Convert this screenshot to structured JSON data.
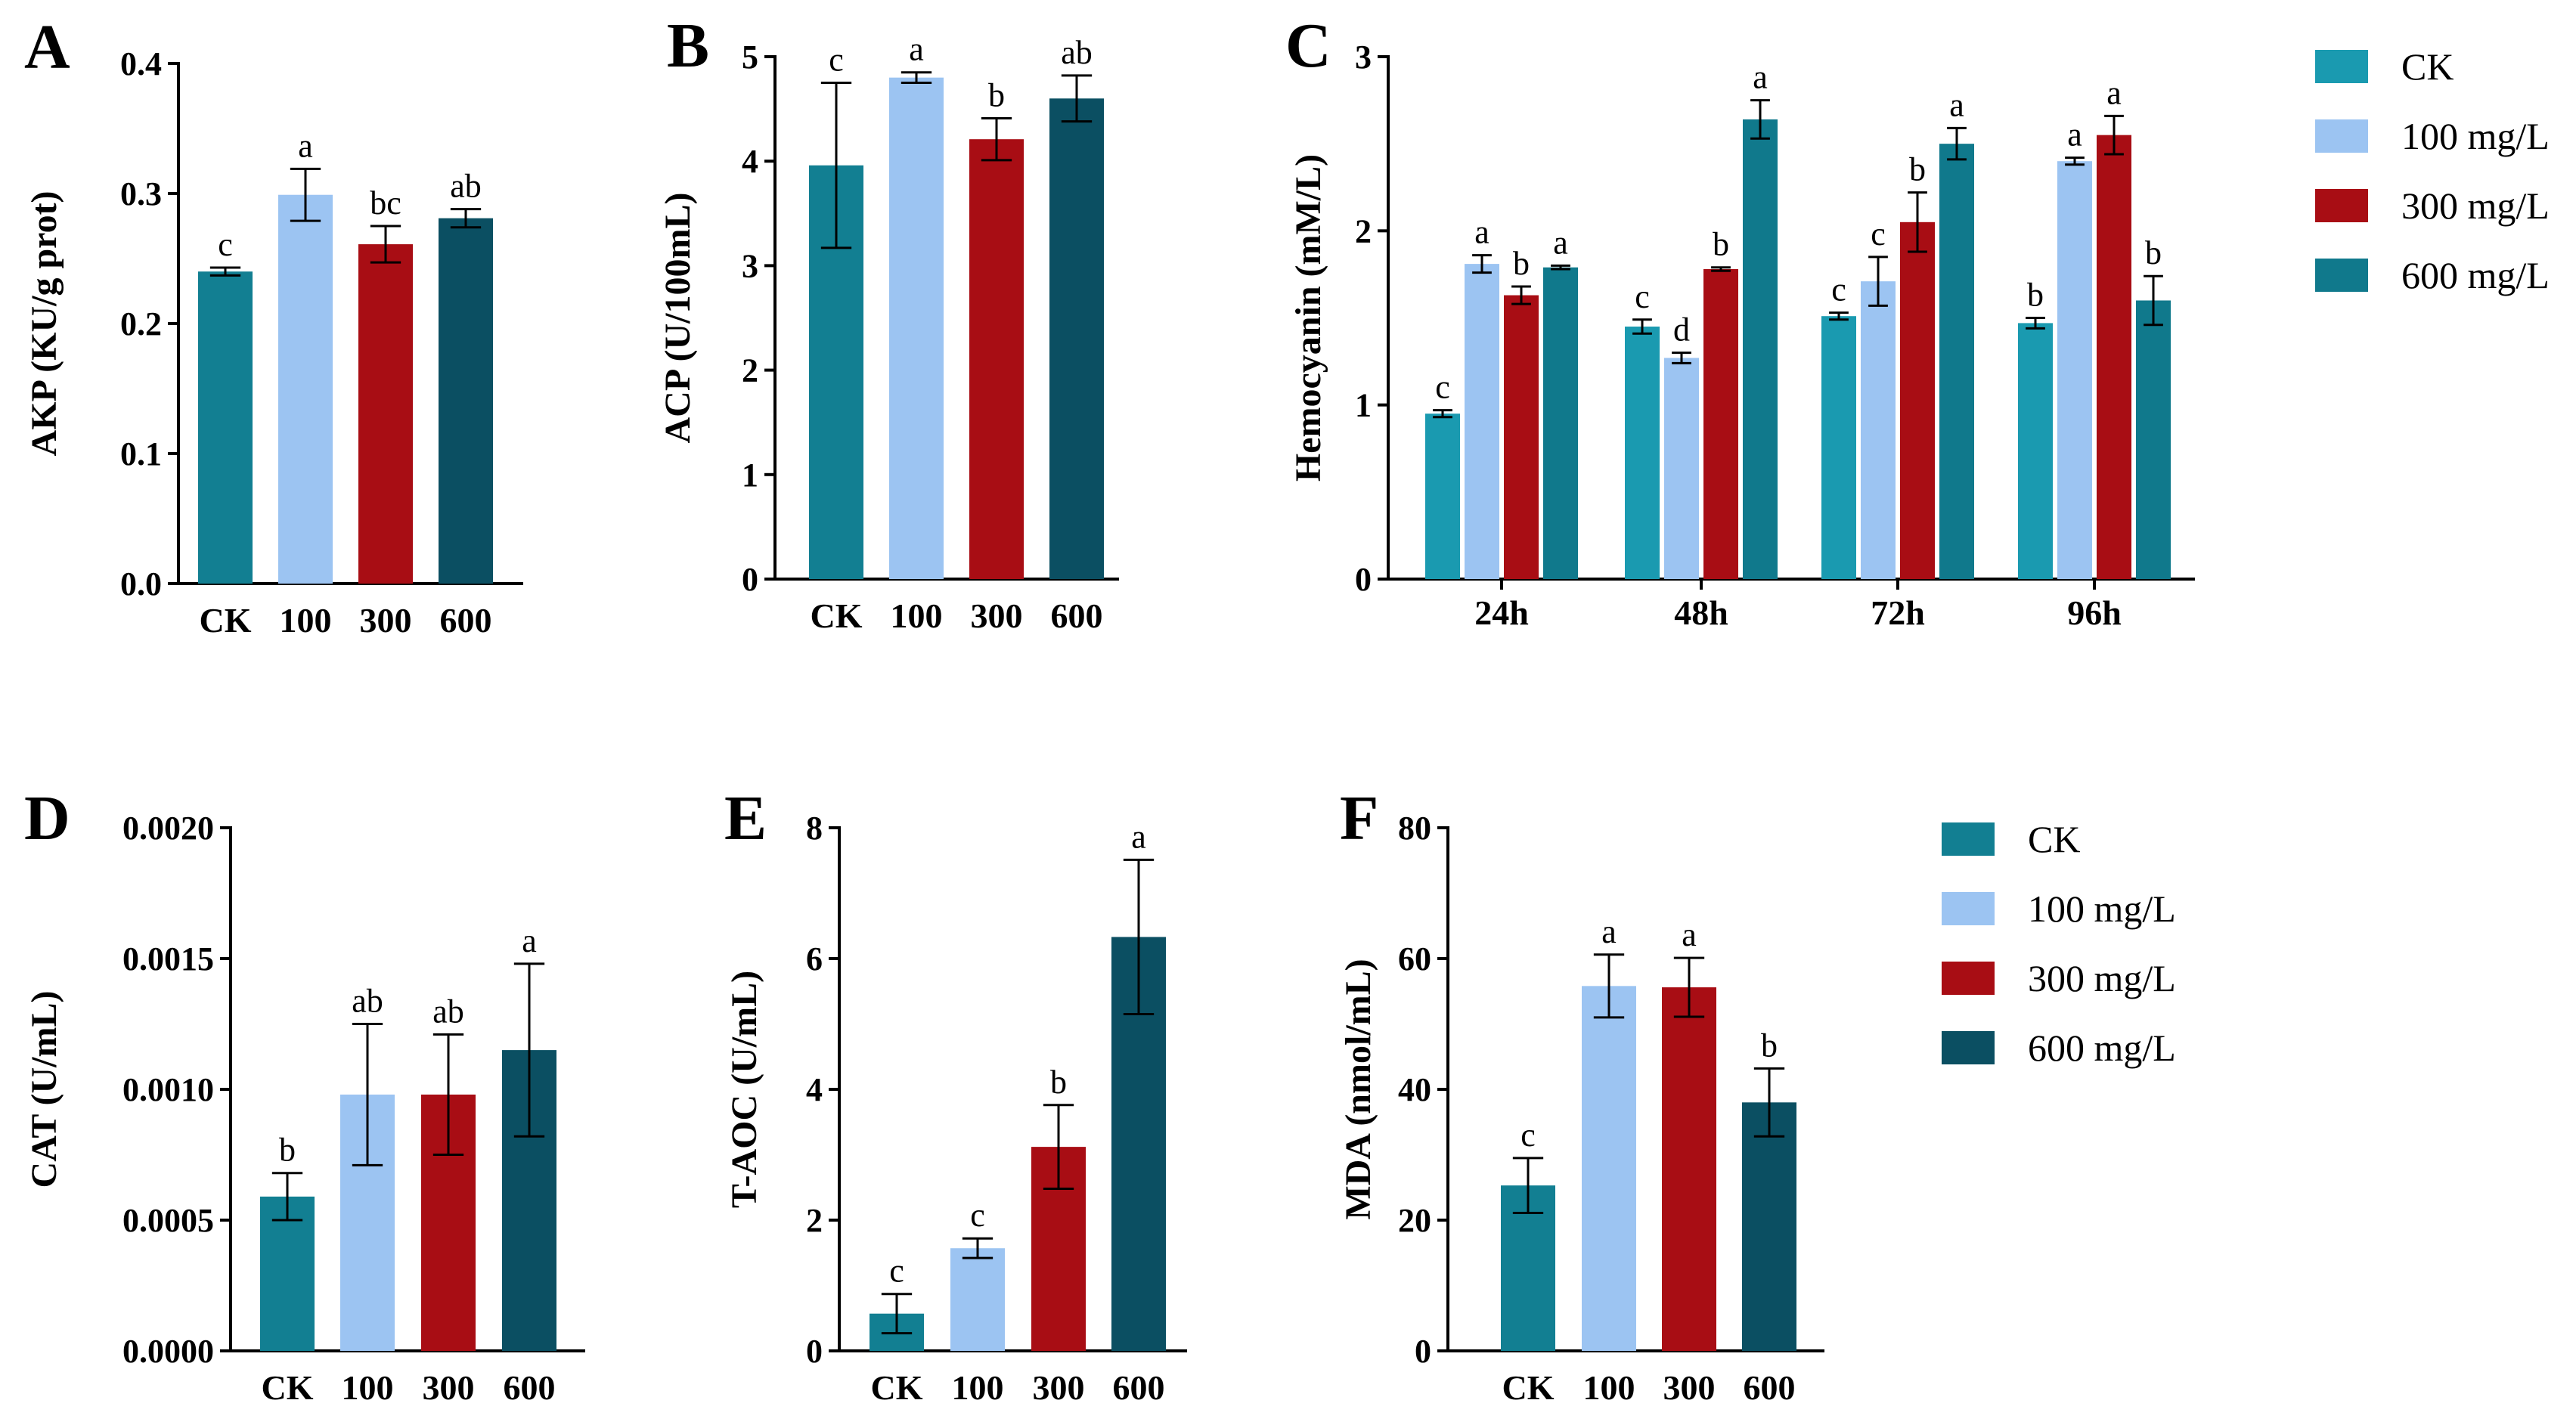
{
  "colors": {
    "CK_single": "#127f92",
    "CK_grouped": "#1a9ab0",
    "100 mg/L": "#9cc4f2",
    "300 mg/L": "#a80d14",
    "600 mg/L": "#0b4f62",
    "600 mg/L_grouped": "#10798c"
  },
  "legends": [
    {
      "items": [
        {
          "label": "CK",
          "color": "#1a9ab0"
        },
        {
          "label": "100 mg/L",
          "color": "#9cc4f2"
        },
        {
          "label": "300 mg/L",
          "color": "#a80d14"
        },
        {
          "label": "600 mg/L",
          "color": "#10798c"
        }
      ]
    },
    {
      "items": [
        {
          "label": "CK",
          "color": "#127f92"
        },
        {
          "label": "100 mg/L",
          "color": "#9cc4f2"
        },
        {
          "label": "300 mg/L",
          "color": "#a80d14"
        },
        {
          "label": "600 mg/L",
          "color": "#0b4f62"
        }
      ]
    }
  ],
  "chart_data": [
    {
      "panel": "A",
      "type": "bar",
      "ylabel": "AKP (KU/g prot)",
      "ylim": [
        0,
        0.4
      ],
      "yticks": [
        "0.0",
        "0.1",
        "0.2",
        "0.3",
        "0.4"
      ],
      "categories": [
        "CK",
        "100",
        "300",
        "600"
      ],
      "values": [
        0.24,
        0.299,
        0.261,
        0.281
      ],
      "errors": [
        0.003,
        0.02,
        0.014,
        0.007
      ],
      "labels": [
        "c",
        "a",
        "bc",
        "ab"
      ]
    },
    {
      "panel": "B",
      "type": "bar",
      "ylabel": "ACP (U/100mL)",
      "ylim": [
        0,
        5
      ],
      "yticks": [
        "0",
        "1",
        "2",
        "3",
        "4",
        "5"
      ],
      "categories": [
        "CK",
        "100",
        "300",
        "600"
      ],
      "values": [
        3.96,
        4.8,
        4.21,
        4.6
      ],
      "errors": [
        0.79,
        0.05,
        0.2,
        0.22
      ],
      "labels": [
        "c",
        "a",
        "b",
        "ab"
      ]
    },
    {
      "panel": "C",
      "type": "bar",
      "ylabel": "Hemocyanin (mM/L)",
      "ylim": [
        0,
        3
      ],
      "yticks": [
        "0",
        "1",
        "2",
        "3"
      ],
      "categories": [
        "24h",
        "48h",
        "72h",
        "96h"
      ],
      "series": [
        {
          "name": "CK",
          "values": [
            0.95,
            1.45,
            1.51,
            1.47
          ],
          "errors": [
            0.02,
            0.04,
            0.02,
            0.03
          ],
          "labels": [
            "c",
            "c",
            "c",
            "b"
          ]
        },
        {
          "name": "100 mg/L",
          "values": [
            1.81,
            1.27,
            1.71,
            2.4
          ],
          "errors": [
            0.05,
            0.03,
            0.14,
            0.02
          ],
          "labels": [
            "a",
            "d",
            "c",
            "a"
          ]
        },
        {
          "name": "300 mg/L",
          "values": [
            1.63,
            1.78,
            2.05,
            2.55
          ],
          "errors": [
            0.05,
            0.01,
            0.17,
            0.11
          ],
          "labels": [
            "b",
            "b",
            "b",
            "a"
          ]
        },
        {
          "name": "600 mg/L",
          "values": [
            1.79,
            2.64,
            2.5,
            1.6
          ],
          "errors": [
            0.01,
            0.11,
            0.09,
            0.14
          ],
          "labels": [
            "a",
            "a",
            "a",
            "b"
          ]
        }
      ]
    },
    {
      "panel": "D",
      "type": "bar",
      "ylabel": "CAT (U/mL)",
      "ylim": [
        0,
        0.002
      ],
      "yticks": [
        "0.0000",
        "0.0005",
        "0.0010",
        "0.0015",
        "0.0020"
      ],
      "categories": [
        "CK",
        "100",
        "300",
        "600"
      ],
      "values": [
        0.00059,
        0.00098,
        0.00098,
        0.00115
      ],
      "errors": [
        9e-05,
        0.00027,
        0.00023,
        0.00033
      ],
      "labels": [
        "b",
        "ab",
        "ab",
        "a"
      ]
    },
    {
      "panel": "E",
      "type": "bar",
      "ylabel": "T-AOC (U/mL)",
      "ylim": [
        0,
        8
      ],
      "yticks": [
        "0",
        "2",
        "4",
        "6",
        "8"
      ],
      "categories": [
        "CK",
        "100",
        "300",
        "600"
      ],
      "values": [
        0.57,
        1.57,
        3.12,
        6.33
      ],
      "errors": [
        0.3,
        0.15,
        0.64,
        1.18
      ],
      "labels": [
        "c",
        "c",
        "b",
        "a"
      ]
    },
    {
      "panel": "F",
      "type": "bar",
      "ylabel": "MDA (nmol/mL)",
      "ylim": [
        0,
        80
      ],
      "yticks": [
        "0",
        "20",
        "40",
        "60",
        "80"
      ],
      "categories": [
        "CK",
        "100",
        "300",
        "600"
      ],
      "values": [
        25.3,
        55.8,
        55.6,
        38
      ],
      "errors": [
        4.2,
        4.8,
        4.5,
        5.2
      ],
      "labels": [
        "c",
        "a",
        "a",
        "b"
      ]
    }
  ]
}
